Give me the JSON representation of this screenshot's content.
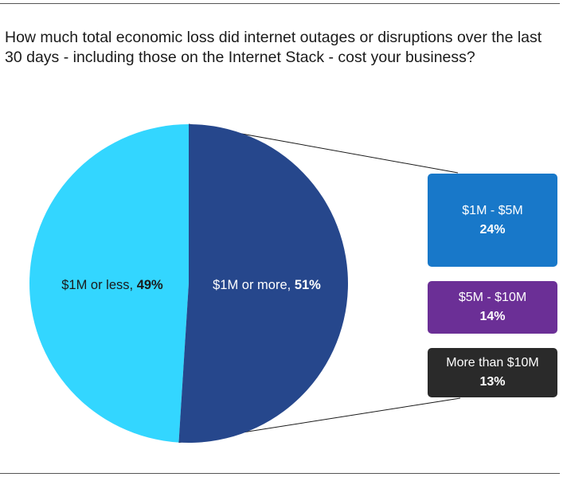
{
  "question": "How much total economic loss did internet outages or disruptions over the last 30 days - including those on the Internet Stack - cost your business?",
  "colors": {
    "less": "#33d6ff",
    "more": "#26478c",
    "b1": "#1878c9",
    "b2": "#6b2f96",
    "b3": "#2a2a2a",
    "connector": "#1a1a1a"
  },
  "chart_data": {
    "type": "pie",
    "slices": [
      {
        "label": "$1M or less",
        "value": 49,
        "value_text": "49%"
      },
      {
        "label": "$1M or more",
        "value": 51,
        "value_text": "51%"
      }
    ],
    "breakdown": [
      {
        "label": "$1M - $5M",
        "value": 24,
        "value_text": "24%"
      },
      {
        "label": "$5M - $10M",
        "value": 14,
        "value_text": "14%"
      },
      {
        "label": "More than $10M",
        "value": 13,
        "value_text": "13%"
      }
    ]
  }
}
